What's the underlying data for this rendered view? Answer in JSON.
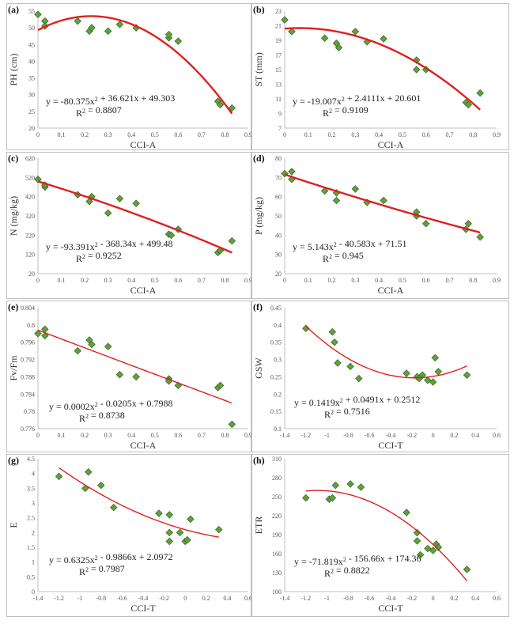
{
  "figure": {
    "title": ""
  },
  "chart_data": [
    {
      "type": "scatter",
      "label": "(a)",
      "xlabel": "CCI-A",
      "ylabel": "PH (cm)",
      "xlim": [
        0,
        0.9
      ],
      "xticks": [
        0,
        0.1,
        0.2,
        0.3,
        0.4,
        0.5,
        0.6,
        0.7,
        0.8,
        0.9
      ],
      "xtick_labels": [
        "0",
        "0.1",
        "0.2",
        "0.3",
        "0.4",
        "0.5",
        "0.6",
        "0.7",
        "0.8",
        "0.9"
      ],
      "ylim": [
        20,
        55
      ],
      "yticks": [
        20,
        25,
        30,
        35,
        40,
        45,
        50,
        55
      ],
      "ytick_labels": [
        "20",
        "25",
        "30",
        "35",
        "40",
        "45",
        "50",
        "55"
      ],
      "points": [
        [
          0,
          54
        ],
        [
          0.03,
          52
        ],
        [
          0.03,
          50.5
        ],
        [
          0.17,
          52
        ],
        [
          0.22,
          49
        ],
        [
          0.23,
          50
        ],
        [
          0.3,
          49
        ],
        [
          0.35,
          51
        ],
        [
          0.42,
          50
        ],
        [
          0.56,
          47
        ],
        [
          0.56,
          48
        ],
        [
          0.6,
          46
        ],
        [
          0.77,
          28
        ],
        [
          0.78,
          27
        ],
        [
          0.83,
          26
        ]
      ],
      "fit": {
        "a": -80.375,
        "b": 36.621,
        "c": 49.303,
        "xrange": [
          0,
          0.83
        ]
      },
      "equation": "y = -80.375x² + 36.621x + 49.303",
      "r2": "R² = 0.8807",
      "marker_color": "#5fa040",
      "marker_stroke": "#3e6e28",
      "line_color": "#e02020",
      "line_width": 2.4
    },
    {
      "type": "scatter",
      "label": "(b)",
      "xlabel": "CCI-A",
      "ylabel": "ST (mm)",
      "xlim": [
        0,
        0.9
      ],
      "xticks": [
        0,
        0.1,
        0.2,
        0.3,
        0.4,
        0.5,
        0.6,
        0.7,
        0.8,
        0.9
      ],
      "xtick_labels": [
        "0",
        "0.1",
        "0.2",
        "0.3",
        "0.4",
        "0.5",
        "0.6",
        "0.7",
        "0.8",
        "0.9"
      ],
      "ylim": [
        7,
        23
      ],
      "yticks": [
        7,
        9,
        11,
        13,
        15,
        17,
        19,
        21,
        23
      ],
      "ytick_labels": [
        "7",
        "9",
        "11",
        "13",
        "15",
        "17",
        "19",
        "21",
        "23"
      ],
      "points": [
        [
          0,
          21.8
        ],
        [
          0.03,
          20.2
        ],
        [
          0.17,
          19.3
        ],
        [
          0.22,
          18.6
        ],
        [
          0.23,
          18
        ],
        [
          0.3,
          20.2
        ],
        [
          0.35,
          18.8
        ],
        [
          0.42,
          19.2
        ],
        [
          0.56,
          16.3
        ],
        [
          0.56,
          15
        ],
        [
          0.6,
          15
        ],
        [
          0.77,
          10.5
        ],
        [
          0.78,
          10.2
        ],
        [
          0.83,
          11.8
        ]
      ],
      "fit": {
        "a": -19.007,
        "b": 2.4111,
        "c": 20.601,
        "xrange": [
          0,
          0.83
        ]
      },
      "equation": "y = -19.007x² + 2.4111x + 20.601",
      "r2": "R² = 0.9109",
      "marker_color": "#5fa040",
      "marker_stroke": "#3e6e28",
      "line_color": "#e02020",
      "line_width": 2.4
    },
    {
      "type": "scatter",
      "label": "(c)",
      "xlabel": "CCI-A",
      "ylabel": "N (mg/kg)",
      "xlim": [
        0,
        0.9
      ],
      "xticks": [
        0,
        0.1,
        0.2,
        0.3,
        0.4,
        0.5,
        0.6,
        0.7,
        0.8,
        0.9
      ],
      "xtick_labels": [
        "0",
        "0.1",
        "0.2",
        "0.3",
        "0.4",
        "0.5",
        "0.6",
        "0.7",
        "0.8",
        "0.9"
      ],
      "ylim": [
        20,
        620
      ],
      "yticks": [
        20,
        120,
        220,
        320,
        420,
        520,
        620
      ],
      "ytick_labels": [
        "20",
        "120",
        "220",
        "320",
        "420",
        "520",
        "620"
      ],
      "points": [
        [
          0,
          510
        ],
        [
          0.03,
          470
        ],
        [
          0.03,
          480
        ],
        [
          0.17,
          430
        ],
        [
          0.22,
          395
        ],
        [
          0.23,
          420
        ],
        [
          0.3,
          335
        ],
        [
          0.35,
          410
        ],
        [
          0.42,
          385
        ],
        [
          0.56,
          225
        ],
        [
          0.57,
          220
        ],
        [
          0.6,
          250
        ],
        [
          0.77,
          130
        ],
        [
          0.78,
          140
        ],
        [
          0.83,
          190
        ]
      ],
      "fit": {
        "a": -93.391,
        "b": -368.34,
        "c": 499.48,
        "xrange": [
          0,
          0.83
        ]
      },
      "equation": "y = -93.391x² - 368.34x + 499.48",
      "r2": "R² = 0.9252",
      "marker_color": "#5fa040",
      "marker_stroke": "#3e6e28",
      "line_color": "#e02020",
      "line_width": 2.4
    },
    {
      "type": "scatter",
      "label": "(d)",
      "xlabel": "CCI-A",
      "ylabel": "P (mg/kg)",
      "xlim": [
        0,
        0.9
      ],
      "xticks": [
        0,
        0.1,
        0.2,
        0.3,
        0.4,
        0.5,
        0.6,
        0.7,
        0.8,
        0.9
      ],
      "xtick_labels": [
        "0",
        "0.1",
        "0.2",
        "0.3",
        "0.4",
        "0.5",
        "0.6",
        "0.7",
        "0.8",
        "0.9"
      ],
      "ylim": [
        20,
        80
      ],
      "yticks": [
        20,
        30,
        40,
        50,
        60,
        70,
        80
      ],
      "ytick_labels": [
        "20",
        "30",
        "40",
        "50",
        "60",
        "70",
        "80"
      ],
      "points": [
        [
          0,
          72
        ],
        [
          0.03,
          73
        ],
        [
          0.03,
          69
        ],
        [
          0.17,
          63
        ],
        [
          0.22,
          62
        ],
        [
          0.22,
          58
        ],
        [
          0.3,
          64
        ],
        [
          0.35,
          57
        ],
        [
          0.42,
          58
        ],
        [
          0.56,
          52
        ],
        [
          0.56,
          50
        ],
        [
          0.6,
          46
        ],
        [
          0.77,
          43
        ],
        [
          0.78,
          46
        ],
        [
          0.83,
          39
        ]
      ],
      "fit": {
        "a": 5.143,
        "b": -40.583,
        "c": 71.51,
        "xrange": [
          0,
          0.83
        ]
      },
      "equation": "y = 5.143x² - 40.583x + 71.51",
      "r2": "R² = 0.945",
      "marker_color": "#5fa040",
      "marker_stroke": "#3e6e28",
      "line_color": "#e02020",
      "line_width": 2.4
    },
    {
      "type": "scatter",
      "label": "(e)",
      "xlabel": "CCI-A",
      "ylabel": "Fv/Fm",
      "xlim": [
        0,
        0.9
      ],
      "xticks": [
        0,
        0.1,
        0.2,
        0.3,
        0.4,
        0.5,
        0.6,
        0.7,
        0.8,
        0.9
      ],
      "xtick_labels": [
        "0",
        "0.1",
        "0.2",
        "0.3",
        "0.4",
        "0.5",
        "0.6",
        "0.7",
        "0.8",
        "0.9"
      ],
      "ylim": [
        0.776,
        0.804
      ],
      "yticks": [
        0.776,
        0.78,
        0.784,
        0.788,
        0.792,
        0.796,
        0.8,
        0.804
      ],
      "ytick_labels": [
        "0.776",
        "0.78",
        "0.784",
        "0.788",
        "0.792",
        "0.796",
        "0.8",
        "0.804"
      ],
      "points": [
        [
          0,
          0.798
        ],
        [
          0.03,
          0.799
        ],
        [
          0.03,
          0.7975
        ],
        [
          0.17,
          0.794
        ],
        [
          0.22,
          0.7965
        ],
        [
          0.23,
          0.7955
        ],
        [
          0.3,
          0.795
        ],
        [
          0.35,
          0.7885
        ],
        [
          0.42,
          0.788
        ],
        [
          0.56,
          0.7875
        ],
        [
          0.56,
          0.787
        ],
        [
          0.6,
          0.786
        ],
        [
          0.77,
          0.7855
        ],
        [
          0.78,
          0.786
        ],
        [
          0.83,
          0.777
        ]
      ],
      "fit": {
        "a": 0.0002,
        "b": -0.0205,
        "c": 0.7988,
        "xrange": [
          0,
          0.83
        ]
      },
      "equation": "y = 0.0002x² - 0.0205x + 0.7988",
      "r2": "R² = 0.8738",
      "marker_color": "#5fa040",
      "marker_stroke": "#3e6e28",
      "line_color": "#e02020",
      "line_width": 1.4
    },
    {
      "type": "scatter",
      "label": "(f)",
      "xlabel": "CCI-T",
      "ylabel": "GSW",
      "xlim": [
        -1.4,
        0.6
      ],
      "xticks": [
        -1.4,
        -1.2,
        -1,
        -0.8,
        -0.6,
        -0.4,
        -0.2,
        0,
        0.2,
        0.4,
        0.6
      ],
      "xtick_labels": [
        "-1.4",
        "-1.2",
        "-1",
        "-0.8",
        "-0.6",
        "-0.4",
        "-0.2",
        "0",
        "0.2",
        "0.4",
        "0.6"
      ],
      "ylim": [
        0.1,
        0.45
      ],
      "yticks": [
        0.1,
        0.15,
        0.2,
        0.25,
        0.3,
        0.35,
        0.4,
        0.45
      ],
      "ytick_labels": [
        "0.1",
        "0.15",
        "0.2",
        "0.25",
        "0.3",
        "0.35",
        "0.4",
        "0.45"
      ],
      "points": [
        [
          -1.2,
          0.39
        ],
        [
          -0.95,
          0.38
        ],
        [
          -0.93,
          0.35
        ],
        [
          -0.9,
          0.29
        ],
        [
          -0.78,
          0.28
        ],
        [
          -0.7,
          0.245
        ],
        [
          -0.25,
          0.26
        ],
        [
          -0.15,
          0.25
        ],
        [
          -0.13,
          0.245
        ],
        [
          -0.1,
          0.255
        ],
        [
          -0.05,
          0.24
        ],
        [
          0,
          0.235
        ],
        [
          0.02,
          0.305
        ],
        [
          0.05,
          0.265
        ],
        [
          0.32,
          0.255
        ]
      ],
      "fit": {
        "a": 0.1419,
        "b": 0.0491,
        "c": 0.2512,
        "xrange": [
          -1.2,
          0.32
        ]
      },
      "equation": "y = 0.1419x² + 0.0491x + 0.2512",
      "r2": "R² = 0.7516",
      "marker_color": "#5fa040",
      "marker_stroke": "#3e6e28",
      "line_color": "#e02020",
      "line_width": 1.4
    },
    {
      "type": "scatter",
      "label": "(g)",
      "xlabel": "CCI-T",
      "ylabel": "E",
      "xlim": [
        -1.4,
        0.6
      ],
      "xticks": [
        -1.4,
        -1.2,
        -1,
        -0.8,
        -0.6,
        -0.4,
        -0.2,
        0,
        0.2,
        0.4,
        0.6
      ],
      "xtick_labels": [
        "-1.4",
        "-1.2",
        "-1",
        "-0.8",
        "-0.6",
        "-0.4",
        "-0.2",
        "0",
        "0.2",
        "0.4",
        "0.6"
      ],
      "ylim": [
        0,
        4.5
      ],
      "yticks": [
        0,
        0.5,
        1,
        1.5,
        2,
        2.5,
        3,
        3.5,
        4,
        4.5
      ],
      "ytick_labels": [
        "0",
        "0.5",
        "1",
        "1.5",
        "2",
        "2.5",
        "3",
        "3.5",
        "4",
        "4.5"
      ],
      "points": [
        [
          -1.2,
          3.9
        ],
        [
          -0.95,
          3.5
        ],
        [
          -0.92,
          4.05
        ],
        [
          -0.8,
          3.6
        ],
        [
          -0.68,
          2.85
        ],
        [
          -0.25,
          2.65
        ],
        [
          -0.15,
          2.6
        ],
        [
          -0.15,
          2.0
        ],
        [
          -0.15,
          1.7
        ],
        [
          -0.05,
          2.0
        ],
        [
          0,
          1.7
        ],
        [
          0.02,
          1.75
        ],
        [
          0.05,
          2.45
        ],
        [
          0.32,
          2.1
        ]
      ],
      "fit": {
        "a": 0.6325,
        "b": -0.9866,
        "c": 2.0972,
        "xrange": [
          -1.2,
          0.32
        ]
      },
      "equation": "y = 0.6325x² - 0.9866x + 2.0972",
      "r2": "R² = 0.7987",
      "marker_color": "#5fa040",
      "marker_stroke": "#3e6e28",
      "line_color": "#e02020",
      "line_width": 1.4
    },
    {
      "type": "scatter",
      "label": "(h)",
      "xlabel": "CCI-T",
      "ylabel": "ETR",
      "xlim": [
        -1.4,
        0.6
      ],
      "xticks": [
        -1.4,
        -1.2,
        -1,
        -0.8,
        -0.6,
        -0.4,
        -0.2,
        0,
        0.2,
        0.4,
        0.6
      ],
      "xtick_labels": [
        "-1.4",
        "-1.2",
        "-1",
        "-0.8",
        "-0.6",
        "-0.4",
        "-0.2",
        "0",
        "0.2",
        "0.4",
        "0.6"
      ],
      "ylim": [
        100,
        310
      ],
      "yticks": [
        100,
        130,
        160,
        190,
        220,
        250,
        280,
        310
      ],
      "ytick_labels": [
        "100",
        "130",
        "160",
        "190",
        "220",
        "250",
        "280",
        "310"
      ],
      "points": [
        [
          -1.2,
          248
        ],
        [
          -0.98,
          246
        ],
        [
          -0.95,
          248
        ],
        [
          -0.92,
          268
        ],
        [
          -0.78,
          270
        ],
        [
          -0.68,
          265
        ],
        [
          -0.25,
          225
        ],
        [
          -0.15,
          193
        ],
        [
          -0.15,
          180
        ],
        [
          -0.12,
          158
        ],
        [
          -0.05,
          168
        ],
        [
          0,
          165
        ],
        [
          0.03,
          175
        ],
        [
          0.05,
          170
        ],
        [
          0.32,
          135
        ]
      ],
      "fit": {
        "a": -71.819,
        "b": -156.66,
        "c": 174.36,
        "xrange": [
          -1.2,
          0.32
        ]
      },
      "equation": "y = -71.819x² - 156.66x + 174.36",
      "r2": "R² = 0.8822",
      "marker_color": "#5fa040",
      "marker_stroke": "#3e6e28",
      "line_color": "#e02020",
      "line_width": 1.4
    }
  ]
}
